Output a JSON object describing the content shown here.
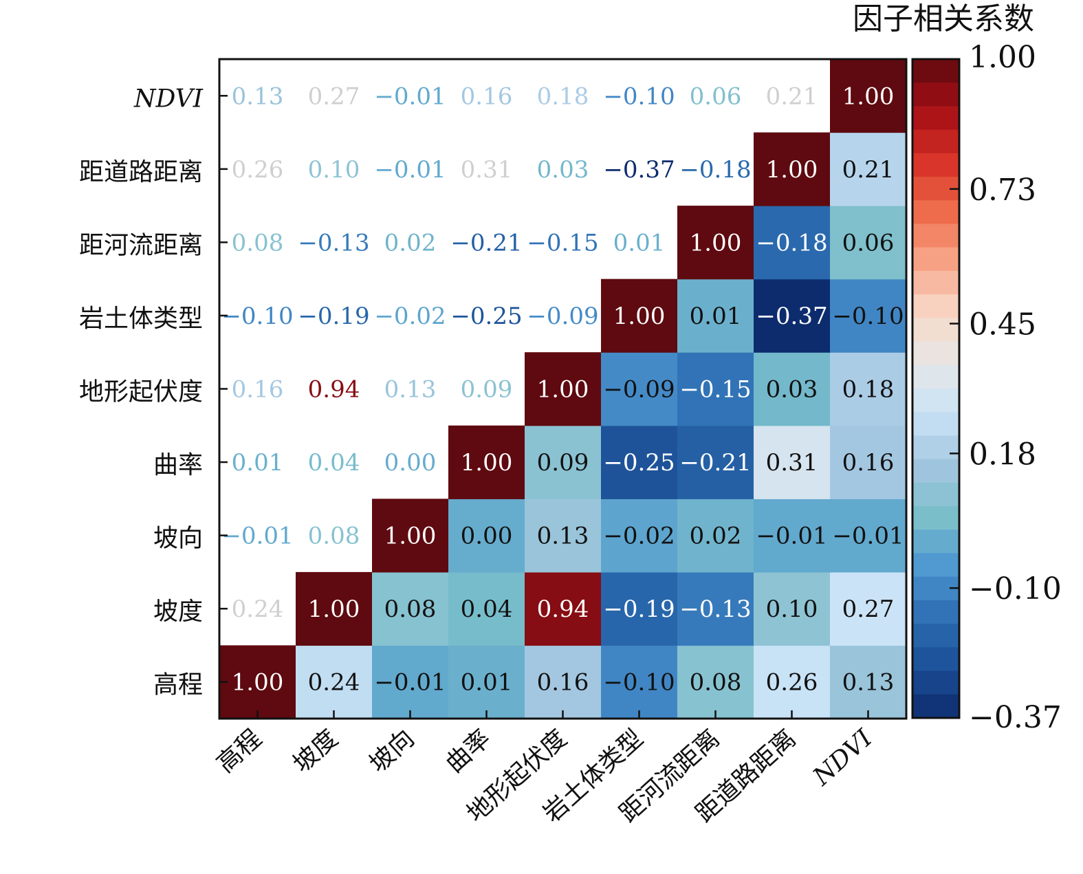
{
  "chart_data": {
    "type": "heatmap",
    "colorbar_title": "因子相关系数",
    "labels": [
      "高程",
      "坡度",
      "坡向",
      "曲率",
      "地形起伏度",
      "岩土体类型",
      "距河流距离",
      "距道路距离",
      "NDVI"
    ],
    "values": [
      [
        1.0,
        0.24,
        -0.01,
        0.01,
        0.16,
        -0.1,
        0.08,
        0.26,
        0.13
      ],
      [
        0.24,
        1.0,
        0.08,
        0.04,
        0.94,
        -0.19,
        -0.13,
        0.1,
        0.27
      ],
      [
        -0.01,
        0.08,
        1.0,
        0.0,
        0.13,
        -0.02,
        0.02,
        -0.01,
        -0.01
      ],
      [
        0.01,
        0.04,
        0.0,
        1.0,
        0.09,
        -0.25,
        -0.21,
        0.31,
        0.16
      ],
      [
        0.16,
        0.94,
        0.13,
        0.09,
        1.0,
        -0.09,
        -0.15,
        0.03,
        0.18
      ],
      [
        -0.1,
        -0.19,
        -0.02,
        -0.25,
        -0.09,
        1.0,
        0.01,
        -0.37,
        -0.1
      ],
      [
        0.08,
        -0.13,
        0.02,
        -0.21,
        -0.15,
        0.01,
        1.0,
        -0.18,
        0.06
      ],
      [
        0.26,
        0.1,
        -0.01,
        0.31,
        0.03,
        -0.37,
        -0.18,
        1.0,
        0.21
      ],
      [
        0.13,
        0.27,
        -0.01,
        0.16,
        0.18,
        -0.1,
        0.06,
        0.21,
        1.0
      ]
    ],
    "value_labels": [
      [
        "1.00",
        "0.24",
        "−0.01",
        "0.01",
        "0.16",
        "−0.10",
        "0.08",
        "0.26",
        "0.13"
      ],
      [
        "0.24",
        "1.00",
        "0.08",
        "0.04",
        "0.94",
        "−0.19",
        "−0.13",
        "0.10",
        "0.27"
      ],
      [
        "−0.01",
        "0.08",
        "1.00",
        "0.00",
        "0.13",
        "−0.02",
        "0.02",
        "−0.01",
        "−0.01"
      ],
      [
        "0.01",
        "0.04",
        "0.00",
        "1.00",
        "0.09",
        "−0.25",
        "−0.21",
        "0.31",
        "0.16"
      ],
      [
        "0.16",
        "0.94",
        "0.13",
        "0.09",
        "1.00",
        "−0.09",
        "−0.15",
        "0.03",
        "0.18"
      ],
      [
        "−0.10",
        "−0.19",
        "−0.02",
        "−0.25",
        "−0.09",
        "1.00",
        "0.01",
        "−0.37",
        "−0.10"
      ],
      [
        "0.08",
        "−0.13",
        "0.02",
        "−0.21",
        "−0.15",
        "0.01",
        "1.00",
        "−0.18",
        "0.06"
      ],
      [
        "0.26",
        "0.10",
        "−0.01",
        "0.31",
        "0.03",
        "−0.37",
        "−0.18",
        "1.00",
        "0.21"
      ],
      [
        "0.13",
        "0.27",
        "−0.01",
        "0.16",
        "0.18",
        "−0.10",
        "0.06",
        "0.21",
        "1.00"
      ]
    ],
    "lower_triangle": "filled_cells",
    "upper_triangle": "text_only",
    "colorbar_ticks": [
      "1.00",
      "0.73",
      "0.45",
      "0.18",
      "−0.10",
      "−0.37"
    ],
    "colorbar_tick_values": [
      1.0,
      0.73,
      0.45,
      0.18,
      -0.1,
      -0.37
    ],
    "vmin": -0.37,
    "vmax": 1.0,
    "colormap": [
      "#0d2c6e",
      "#1b4f96",
      "#2e6fb3",
      "#4f98d1",
      "#7cc0ca",
      "#a3c6e0",
      "#c9e3f7",
      "#e6e6e6",
      "#f8d8c6",
      "#f7a487",
      "#ee6b4a",
      "#d73027",
      "#a50f15",
      "#5e0a10"
    ]
  }
}
